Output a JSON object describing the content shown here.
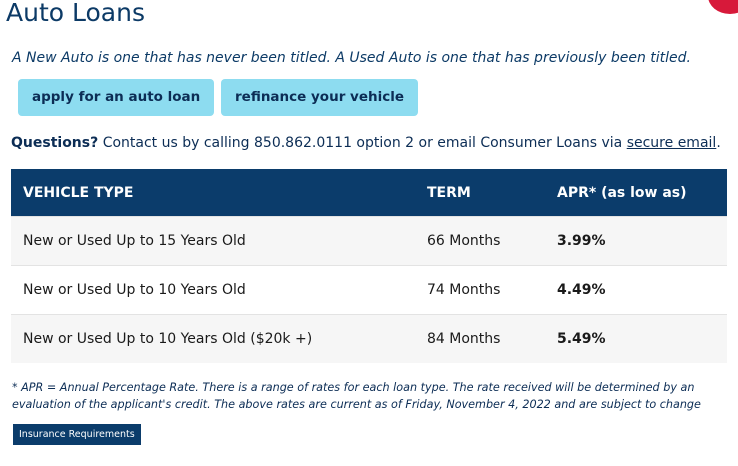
{
  "header": {
    "title": "Auto Loans"
  },
  "intro": "A New Auto is one that has never been titled. A Used Auto is one that has previously been titled.",
  "buttons": [
    "apply for an auto loan",
    "refinance your vehicle"
  ],
  "questions": {
    "label": "Questions?",
    "text": "Contact us by calling 850.862.0111 option 2 or email Consumer Loans via",
    "link": "secure email",
    "end": "."
  },
  "table": {
    "header": [
      "VEHICLE TYPE",
      "TERM",
      "APR* (as low as)"
    ],
    "rows": [
      [
        "New or Used Up to 15 Years Old",
        "66 Months",
        "3.99%"
      ],
      [
        "New or Used Up to 10 Years Old",
        "74 Months",
        "4.49%"
      ],
      [
        "New or Used Up to 10 Years Old ($20k +)",
        "84 Months",
        "5.49%"
      ]
    ]
  },
  "footnote": "* APR = Annual Percentage Rate. There is a range of rates for each loan type. The rate received will be determined by an evaluation of the applicant's credit. The above rates are current as of Friday, November 4, 2022 and are subject to change",
  "insurance_button": "Insurance Requirements"
}
